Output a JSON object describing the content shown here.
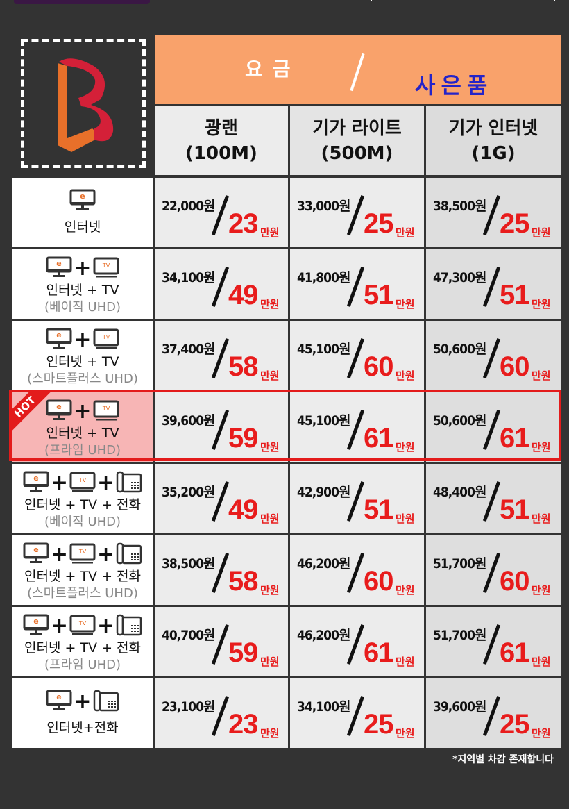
{
  "header": {
    "fee_label": "요금",
    "gift_label": "사은품"
  },
  "columns": [
    {
      "name": "광랜",
      "speed": "(100M)"
    },
    {
      "name": "기가 라이트",
      "speed": "(500M)"
    },
    {
      "name": "기가 인터넷",
      "speed": "(1G)"
    }
  ],
  "unit": "만원",
  "hot_label": "HOT",
  "rows": [
    {
      "icons": [
        "monitor"
      ],
      "label": "인터넷",
      "sub": "",
      "cells": [
        {
          "price": "22,000원",
          "gift": "23"
        },
        {
          "price": "33,000원",
          "gift": "25"
        },
        {
          "price": "38,500원",
          "gift": "25"
        }
      ]
    },
    {
      "icons": [
        "monitor",
        "tv"
      ],
      "label": "인터넷  +  TV",
      "sub": "(베이직 UHD)",
      "cells": [
        {
          "price": "34,100원",
          "gift": "49"
        },
        {
          "price": "41,800원",
          "gift": "51"
        },
        {
          "price": "47,300원",
          "gift": "51"
        }
      ]
    },
    {
      "icons": [
        "monitor",
        "tv"
      ],
      "label": "인터넷  +  TV",
      "sub": "(스마트플러스 UHD)",
      "cells": [
        {
          "price": "37,400원",
          "gift": "58"
        },
        {
          "price": "45,100원",
          "gift": "60"
        },
        {
          "price": "50,600원",
          "gift": "60"
        }
      ]
    },
    {
      "icons": [
        "monitor",
        "tv"
      ],
      "label": "인터넷  +  TV",
      "sub": "(프라임 UHD)",
      "hot": true,
      "cells": [
        {
          "price": "39,600원",
          "gift": "59"
        },
        {
          "price": "45,100원",
          "gift": "61"
        },
        {
          "price": "50,600원",
          "gift": "61"
        }
      ]
    },
    {
      "icons": [
        "monitor",
        "tv",
        "phone"
      ],
      "label": "인터넷 + TV + 전화",
      "sub": "(베이직 UHD)",
      "cells": [
        {
          "price": "35,200원",
          "gift": "49"
        },
        {
          "price": "42,900원",
          "gift": "51"
        },
        {
          "price": "48,400원",
          "gift": "51"
        }
      ]
    },
    {
      "icons": [
        "monitor",
        "tv",
        "phone"
      ],
      "label": "인터넷 + TV + 전화",
      "sub": "(스마트플러스 UHD)",
      "cells": [
        {
          "price": "38,500원",
          "gift": "58"
        },
        {
          "price": "46,200원",
          "gift": "60"
        },
        {
          "price": "51,700원",
          "gift": "60"
        }
      ]
    },
    {
      "icons": [
        "monitor",
        "tv",
        "phone"
      ],
      "label": "인터넷 + TV + 전화",
      "sub": "(프라임 UHD)",
      "cells": [
        {
          "price": "40,700원",
          "gift": "59"
        },
        {
          "price": "46,200원",
          "gift": "61"
        },
        {
          "price": "51,700원",
          "gift": "61"
        }
      ]
    },
    {
      "icons": [
        "monitor",
        "phone"
      ],
      "label": "인터넷+전화",
      "sub": "",
      "cells": [
        {
          "price": "23,100원",
          "gift": "23"
        },
        {
          "price": "34,100원",
          "gift": "25"
        },
        {
          "price": "39,600원",
          "gift": "25"
        }
      ]
    }
  ],
  "footnote": "*지역별 차감 존재합니다",
  "colors": {
    "header": "#f9a26b",
    "gift": "#e81c1c",
    "gift_header": "#2424c8",
    "hot": "#e31b1b",
    "hot_bg": "#f7b5b5",
    "background": "#333333"
  }
}
